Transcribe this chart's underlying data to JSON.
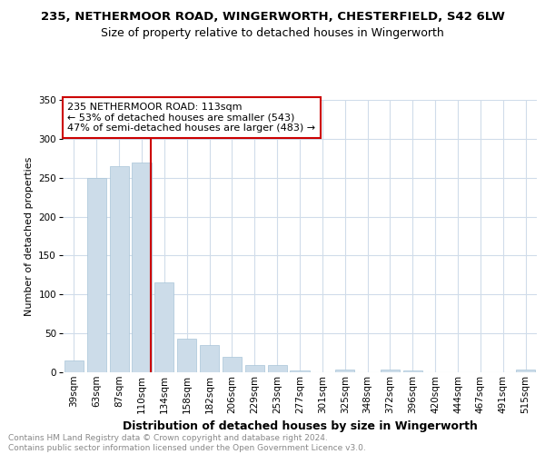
{
  "title": "235, NETHERMOOR ROAD, WINGERWORTH, CHESTERFIELD, S42 6LW",
  "subtitle": "Size of property relative to detached houses in Wingerworth",
  "xlabel": "Distribution of detached houses by size in Wingerworth",
  "ylabel": "Number of detached properties",
  "categories": [
    "39sqm",
    "63sqm",
    "87sqm",
    "110sqm",
    "134sqm",
    "158sqm",
    "182sqm",
    "206sqm",
    "229sqm",
    "253sqm",
    "277sqm",
    "301sqm",
    "325sqm",
    "348sqm",
    "372sqm",
    "396sqm",
    "420sqm",
    "444sqm",
    "467sqm",
    "491sqm",
    "515sqm"
  ],
  "values": [
    15,
    250,
    265,
    270,
    115,
    43,
    35,
    20,
    9,
    9,
    2,
    0,
    3,
    0,
    3,
    2,
    0,
    0,
    0,
    0,
    3
  ],
  "bar_color": "#ccdce9",
  "bar_edge_color": "#a8c4d8",
  "vline_x": 3.42,
  "vline_color": "#cc0000",
  "annotation_line1": "235 NETHERMOOR ROAD: 113sqm",
  "annotation_line2": "← 53% of detached houses are smaller (543)",
  "annotation_line3": "47% of semi-detached houses are larger (483) →",
  "annotation_border_color": "#cc0000",
  "footer_text": "Contains HM Land Registry data © Crown copyright and database right 2024.\nContains public sector information licensed under the Open Government Licence v3.0.",
  "ylim": [
    0,
    350
  ],
  "yticks": [
    0,
    50,
    100,
    150,
    200,
    250,
    300,
    350
  ],
  "background_color": "#ffffff",
  "grid_color": "#d0dcea",
  "title_fontsize": 9.5,
  "subtitle_fontsize": 9,
  "ylabel_fontsize": 8,
  "xlabel_fontsize": 9,
  "tick_fontsize": 7.5,
  "annotation_fontsize": 8,
  "footer_fontsize": 6.5
}
